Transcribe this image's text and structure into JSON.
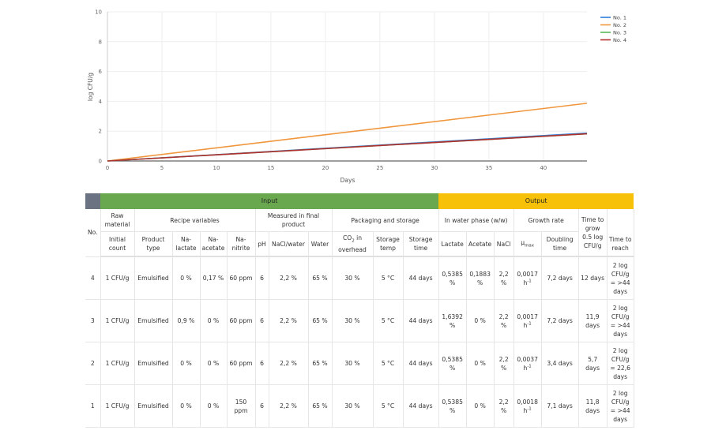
{
  "chart_data": {
    "type": "line",
    "xlabel": "Days",
    "ylabel": "log CFU/g",
    "xlim": [
      0,
      44
    ],
    "ylim": [
      0,
      10
    ],
    "xticks": [
      0,
      5,
      10,
      15,
      20,
      25,
      30,
      35,
      40
    ],
    "yticks": [
      0,
      2,
      4,
      6,
      8,
      10
    ],
    "grid": true,
    "legend": "top-right",
    "series": [
      {
        "name": "No. 1",
        "color": "#2f7ed8",
        "x": [
          0,
          44
        ],
        "y": [
          0,
          1.87
        ]
      },
      {
        "name": "No. 2",
        "color": "#f0963c",
        "x": [
          0,
          44
        ],
        "y": [
          0,
          3.87
        ]
      },
      {
        "name": "No. 3",
        "color": "#5cb85c",
        "x": [
          0,
          44
        ],
        "y": [
          0,
          1.82
        ]
      },
      {
        "name": "No. 4",
        "color": "#b03030",
        "x": [
          0,
          44
        ],
        "y": [
          0,
          1.82
        ]
      }
    ]
  },
  "table": {
    "group_input": "Input",
    "group_output": "Output",
    "h1": {
      "no": "No.",
      "raw": "Raw material",
      "recipe": "Recipe variables",
      "measured": "Measured in final product",
      "packaging": "Packaging and storage",
      "water_phase": "In water phase (w/w)",
      "growth": "Growth rate",
      "time_grow": "Time to grow 0.5 log CFU/g",
      "time_reach": "Time to reach"
    },
    "h2": {
      "initial": "Initial count",
      "product": "Product type",
      "lactate": "Na-lactate",
      "acetate": "Na-acetate",
      "nitrite": "Na-nitrite",
      "ph": "pH",
      "nacl_water": "NaCl/water",
      "water": "Water",
      "co2": "CO",
      "co2_sub": "2",
      "co2_rest": " in overhead",
      "temp": "Storage temp",
      "time": "Storage time",
      "wp_lactate": "Lactate",
      "wp_acetate": "Acetate",
      "wp_nacl": "NaCl",
      "mu": "μ",
      "mu_sub": "max",
      "doubling": "Doubling time"
    },
    "rows": [
      {
        "no": "4",
        "initial": "1 CFU/g",
        "product": "Emulsified",
        "lactate": "0 %",
        "acetate": "0,17 %",
        "nitrite": "60 ppm",
        "ph": "6",
        "nacl_water": "2,2 %",
        "water": "65 %",
        "co2": "30 %",
        "temp": "5 °C",
        "time": "44 days",
        "wp_lactate": "0,5385 %",
        "wp_acetate": "0,1883 %",
        "wp_nacl": "2,2 %",
        "mu": "0,0017 h",
        "doubling": "7,2 days",
        "grow": "12 days",
        "reach": "2 log CFU/g = >44 days"
      },
      {
        "no": "3",
        "initial": "1 CFU/g",
        "product": "Emulsified",
        "lactate": "0,9 %",
        "acetate": "0 %",
        "nitrite": "60 ppm",
        "ph": "6",
        "nacl_water": "2,2 %",
        "water": "65 %",
        "co2": "30 %",
        "temp": "5 °C",
        "time": "44 days",
        "wp_lactate": "1,6392 %",
        "wp_acetate": "0 %",
        "wp_nacl": "2,2 %",
        "mu": "0,0017 h",
        "doubling": "7,2 days",
        "grow": "11,9 days",
        "reach": "2 log CFU/g = >44 days"
      },
      {
        "no": "2",
        "initial": "1 CFU/g",
        "product": "Emulsified",
        "lactate": "0 %",
        "acetate": "0 %",
        "nitrite": "60 ppm",
        "ph": "6",
        "nacl_water": "2,2 %",
        "water": "65 %",
        "co2": "30 %",
        "temp": "5 °C",
        "time": "44 days",
        "wp_lactate": "0,5385 %",
        "wp_acetate": "0 %",
        "wp_nacl": "2,2 %",
        "mu": "0,0037 h",
        "doubling": "3,4 days",
        "grow": "5,7 days",
        "reach": "2 log CFU/g = 22,6 days"
      },
      {
        "no": "1",
        "initial": "1 CFU/g",
        "product": "Emulsified",
        "lactate": "0 %",
        "acetate": "0 %",
        "nitrite": "150 ppm",
        "ph": "6",
        "nacl_water": "2,2 %",
        "water": "65 %",
        "co2": "30 %",
        "temp": "5 °C",
        "time": "44 days",
        "wp_lactate": "0,5385 %",
        "wp_acetate": "0 %",
        "wp_nacl": "2,2 %",
        "mu": "0,0018 h",
        "doubling": "7,1 days",
        "grow": "11,8 days",
        "reach": "2 log CFU/g = >44 days"
      }
    ],
    "mu_unit_sup": "-1"
  }
}
